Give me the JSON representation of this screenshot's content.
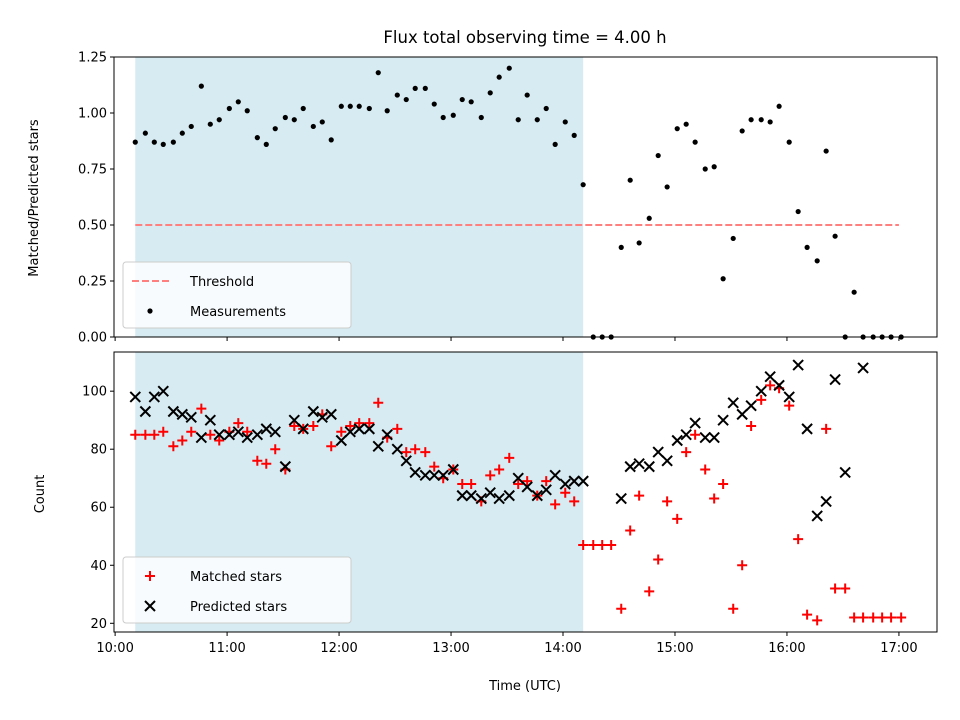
{
  "chart_data": [
    {
      "type": "scatter",
      "title": "Flux total observing time = 4.00 h",
      "ylabel": "Matched/Predicted stars",
      "ylim": [
        0,
        1.25
      ],
      "yticks": [
        0.0,
        0.25,
        0.5,
        0.75,
        1.0,
        1.25
      ],
      "ytick_labels": [
        "0.00",
        "0.25",
        "0.50",
        "0.75",
        "1.00",
        "1.25"
      ],
      "xlim": [
        9.99,
        17.34
      ],
      "xticks": [
        10,
        11,
        12,
        13,
        14,
        15,
        16,
        17
      ],
      "shaded_span": [
        10.18,
        14.18
      ],
      "shade_color": "#add8e6",
      "threshold": {
        "name": "Threshold",
        "value": 0.5,
        "x_range": [
          10.18,
          17.0
        ],
        "color": "#ff7f7f"
      },
      "legend": {
        "placement": "lower left",
        "entries": [
          "Threshold",
          "Measurements"
        ]
      },
      "series": [
        {
          "name": "Measurements",
          "color": "#000000",
          "x": [
            10.18,
            10.27,
            10.35,
            10.43,
            10.52,
            10.6,
            10.68,
            10.77,
            10.85,
            10.93,
            11.02,
            11.1,
            11.18,
            11.27,
            11.35,
            11.43,
            11.52,
            11.6,
            11.68,
            11.77,
            11.85,
            11.93,
            12.02,
            12.1,
            12.18,
            12.27,
            12.35,
            12.43,
            12.52,
            12.6,
            12.68,
            12.77,
            12.85,
            12.93,
            13.02,
            13.1,
            13.18,
            13.27,
            13.35,
            13.43,
            13.52,
            13.6,
            13.68,
            13.77,
            13.85,
            13.93,
            14.02,
            14.1,
            14.18,
            14.27,
            14.35,
            14.43,
            14.52,
            14.6,
            14.68,
            14.77,
            14.85,
            14.93,
            15.02,
            15.1,
            15.18,
            15.27,
            15.35,
            15.43,
            15.52,
            15.6,
            15.68,
            15.77,
            15.85,
            15.93,
            16.02,
            16.1,
            16.18,
            16.27,
            16.35,
            16.43,
            16.52,
            16.6,
            16.68,
            16.77,
            16.85,
            16.93,
            17.02
          ],
          "y": [
            0.87,
            0.91,
            0.87,
            0.86,
            0.87,
            0.91,
            0.94,
            1.12,
            0.95,
            0.97,
            1.02,
            1.05,
            1.01,
            0.89,
            0.86,
            0.93,
            0.98,
            0.97,
            1.02,
            0.94,
            0.96,
            0.88,
            1.03,
            1.03,
            1.03,
            1.02,
            1.18,
            1.01,
            1.08,
            1.06,
            1.11,
            1.11,
            1.04,
            0.98,
            0.99,
            1.06,
            1.05,
            0.98,
            1.09,
            1.16,
            1.2,
            0.97,
            1.08,
            0.97,
            1.02,
            0.86,
            0.96,
            0.9,
            0.68,
            0.0,
            0.0,
            0.0,
            0.4,
            0.7,
            0.42,
            0.53,
            0.81,
            0.67,
            0.93,
            0.95,
            0.87,
            0.75,
            0.76,
            0.26,
            0.44,
            0.92,
            0.97,
            0.97,
            0.96,
            1.03,
            0.87,
            0.56,
            0.4,
            0.34,
            0.83,
            0.45,
            0.0,
            0.2,
            0.0,
            0.0,
            0.0,
            0.0,
            0.0
          ]
        }
      ]
    },
    {
      "type": "scatter",
      "xlabel": "Time (UTC)",
      "ylabel": "Count",
      "ylim": [
        17,
        113.5
      ],
      "yticks": [
        20,
        40,
        60,
        80,
        100
      ],
      "ytick_labels": [
        "20",
        "40",
        "60",
        "80",
        "100"
      ],
      "xlim": [
        9.99,
        17.34
      ],
      "xticks": [
        10,
        11,
        12,
        13,
        14,
        15,
        16,
        17
      ],
      "xtick_labels": [
        "10:00",
        "11:00",
        "12:00",
        "13:00",
        "14:00",
        "15:00",
        "16:00",
        "17:00"
      ],
      "shaded_span": [
        10.18,
        14.18
      ],
      "shade_color": "#add8e6",
      "legend": {
        "placement": "lower left",
        "entries": [
          "Matched stars",
          "Predicted stars"
        ]
      },
      "series": [
        {
          "name": "Matched stars",
          "marker": "plus",
          "color": "#ff0000",
          "x": [
            10.18,
            10.27,
            10.35,
            10.43,
            10.52,
            10.6,
            10.68,
            10.77,
            10.85,
            10.93,
            11.02,
            11.1,
            11.18,
            11.27,
            11.35,
            11.43,
            11.52,
            11.6,
            11.68,
            11.77,
            11.85,
            11.93,
            12.02,
            12.1,
            12.18,
            12.27,
            12.35,
            12.43,
            12.52,
            12.6,
            12.68,
            12.77,
            12.85,
            12.93,
            13.02,
            13.1,
            13.18,
            13.27,
            13.35,
            13.43,
            13.52,
            13.6,
            13.68,
            13.77,
            13.85,
            13.93,
            14.02,
            14.1,
            14.18,
            14.27,
            14.35,
            14.43,
            14.52,
            14.6,
            14.68,
            14.77,
            14.85,
            14.93,
            15.02,
            15.1,
            15.18,
            15.27,
            15.35,
            15.43,
            15.52,
            15.6,
            15.68,
            15.77,
            15.85,
            15.93,
            16.02,
            16.1,
            16.18,
            16.27,
            16.35,
            16.43,
            16.52,
            16.6,
            16.68,
            16.77,
            16.85,
            16.93,
            17.02
          ],
          "y": [
            85,
            85,
            85,
            86,
            81,
            83,
            86,
            94,
            85,
            83,
            86,
            89,
            86,
            76,
            75,
            80,
            73,
            88,
            87,
            88,
            92,
            81,
            86,
            88,
            89,
            89,
            96,
            84,
            87,
            79,
            80,
            79,
            74,
            70,
            73,
            68,
            68,
            62,
            71,
            73,
            77,
            68,
            69,
            64,
            69,
            61,
            65,
            62,
            47,
            47,
            47,
            47,
            25,
            52,
            64,
            31,
            42,
            62,
            56,
            79,
            85,
            73,
            63,
            68,
            25,
            40,
            88,
            97,
            102,
            101,
            95,
            49,
            23,
            21,
            87,
            32,
            32,
            22,
            22,
            22,
            22,
            22,
            22
          ]
        },
        {
          "name": "Predicted stars",
          "marker": "x",
          "color": "#000000",
          "x": [
            10.18,
            10.27,
            10.35,
            10.43,
            10.52,
            10.6,
            10.68,
            10.77,
            10.85,
            10.93,
            11.02,
            11.1,
            11.18,
            11.27,
            11.35,
            11.43,
            11.52,
            11.6,
            11.68,
            11.77,
            11.85,
            11.93,
            12.02,
            12.1,
            12.18,
            12.27,
            12.35,
            12.43,
            12.52,
            12.6,
            12.68,
            12.77,
            12.85,
            12.93,
            13.02,
            13.1,
            13.18,
            13.27,
            13.35,
            13.43,
            13.52,
            13.6,
            13.68,
            13.77,
            13.85,
            13.93,
            14.02,
            14.1,
            14.18,
            14.52,
            14.6,
            14.68,
            14.77,
            14.85,
            14.93,
            15.02,
            15.1,
            15.18,
            15.27,
            15.35,
            15.43,
            15.52,
            15.6,
            15.68,
            15.77,
            15.85,
            15.93,
            16.02,
            16.1,
            16.18,
            16.27,
            16.35,
            16.43,
            16.52,
            16.68
          ],
          "y": [
            98,
            93,
            98,
            100,
            93,
            92,
            91,
            84,
            90,
            85,
            85,
            86,
            84,
            85,
            87,
            86,
            74,
            90,
            87,
            93,
            91,
            92,
            83,
            86,
            87,
            87,
            81,
            85,
            80,
            76,
            72,
            71,
            71,
            71,
            73,
            64,
            64,
            63,
            65,
            63,
            64,
            70,
            67,
            64,
            66,
            71,
            68,
            69,
            69,
            63,
            74,
            75,
            74,
            79,
            76,
            83,
            85,
            89,
            84,
            84,
            90,
            96,
            92,
            95,
            100,
            105,
            102,
            98,
            109,
            87,
            57,
            62,
            104,
            72,
            108
          ]
        }
      ]
    }
  ]
}
